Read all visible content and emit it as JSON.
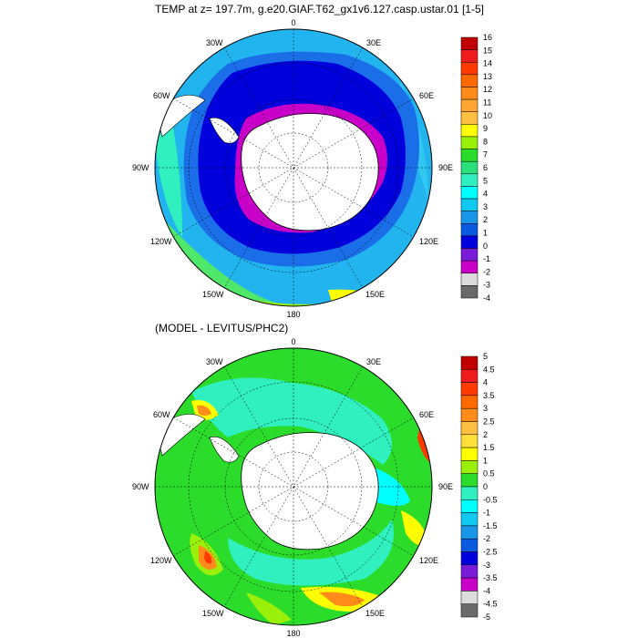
{
  "titles": {
    "top": "TEMP at z= 197.7m, g.e20.GIAF.T62_gx1v6.127.casp.ustar.01 [1-5]",
    "bottom": "(MODEL - LEVITUS/PHC2)"
  },
  "lon_labels": {
    "n0": "0",
    "e30": "30E",
    "e60": "60E",
    "e90": "90E",
    "e120": "120E",
    "e150": "150E",
    "s180": "180",
    "w150": "150W",
    "w120": "120W",
    "w90": "90W",
    "w60": "60W",
    "w30": "30W"
  },
  "colorbar_top": {
    "labels": [
      "16",
      "15",
      "14",
      "13",
      "12",
      "11",
      "10",
      "9",
      "8",
      "7",
      "6",
      "5",
      "4",
      "3",
      "2",
      "1",
      "0",
      "-1",
      "-2",
      "-3",
      "-4"
    ],
    "colors": [
      "#c00000",
      "#ee1c1c",
      "#ff3a00",
      "#ff6a00",
      "#ff8c1a",
      "#ffa531",
      "#ffbf3f",
      "#ffff00",
      "#9bf00a",
      "#2bdc2b",
      "#2ae07b",
      "#30f0c0",
      "#00ffff",
      "#10c8f0",
      "#1a96e8",
      "#0a5ae0",
      "#0000dd",
      "#7a1bd8",
      "#c800c8",
      "#dcdcdc",
      "#6a6a6a"
    ]
  },
  "colorbar_bottom": {
    "labels": [
      "5",
      "4.5",
      "4",
      "3.5",
      "3",
      "2.5",
      "2",
      "1.5",
      "1",
      "0.5",
      "0",
      "-0.5",
      "-1",
      "-1.5",
      "-2",
      "-2.5",
      "-3",
      "-3.5",
      "-4",
      "-4.5",
      "-5"
    ],
    "colors": [
      "#c00000",
      "#ee1c1c",
      "#ff3a00",
      "#ff6a00",
      "#ff8c1a",
      "#ffbf3f",
      "#ffe03a",
      "#ffff00",
      "#9bf00a",
      "#2bdc2b",
      "#30f0c0",
      "#00ffff",
      "#10c8f0",
      "#1a96e8",
      "#0a5ae0",
      "#0000dd",
      "#7a1bd8",
      "#c800c8",
      "#dcdcdc",
      "#6a6a6a"
    ]
  },
  "colors": {
    "land": "#ffffff",
    "coast": "#000000"
  }
}
